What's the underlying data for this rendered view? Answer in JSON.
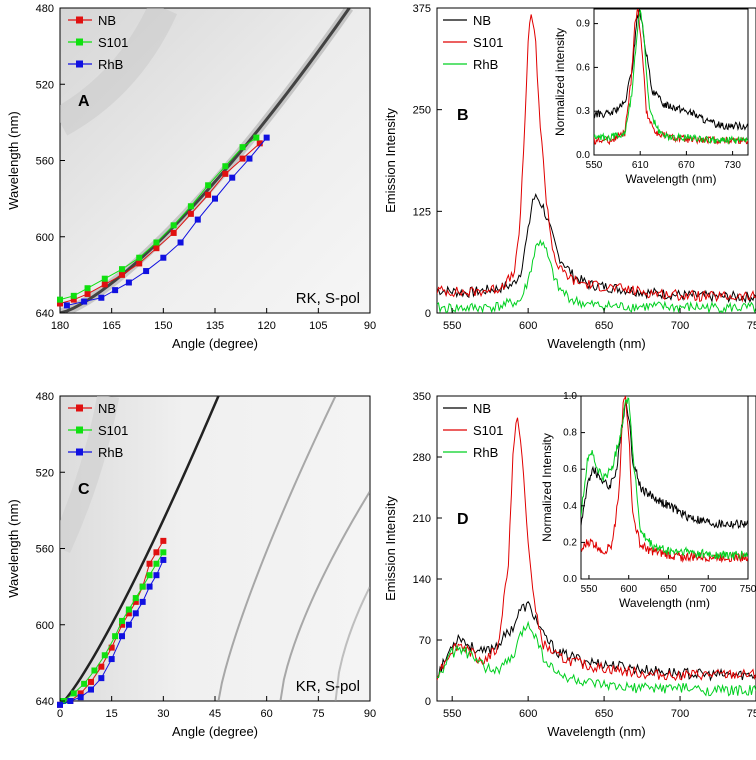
{
  "colors": {
    "NB": "#000000",
    "S101": "#e00000",
    "RhB": "#00d020",
    "NB_marker": "#e01010",
    "S101_marker": "#10e010",
    "RhB_marker": "#1010e0"
  },
  "chart_data": [
    {
      "panel": "A",
      "type": "scatter",
      "annotation": "RK, S-pol",
      "xlabel": "Angle (degree)",
      "ylabel": "Wavelength (nm)",
      "xlim": [
        180,
        90
      ],
      "ylim": [
        640,
        480
      ],
      "xticks": [
        "180",
        "165",
        "150",
        "135",
        "120",
        "105",
        "90"
      ],
      "yticks": [
        "480",
        "520",
        "560",
        "600",
        "640"
      ],
      "background": "dispersion band (grayscale intensity map)",
      "series": [
        {
          "name": "NB",
          "marker": "square",
          "x": [
            180,
            176,
            172,
            167,
            162,
            157,
            152,
            147,
            142,
            137,
            132,
            127,
            122
          ],
          "y": [
            635,
            633,
            630,
            625,
            620,
            614,
            606,
            598,
            588,
            578,
            567,
            559,
            551
          ]
        },
        {
          "name": "S101",
          "marker": "square",
          "x": [
            180,
            176,
            172,
            167,
            162,
            157,
            152,
            147,
            142,
            137,
            132,
            127,
            123
          ],
          "y": [
            633,
            631,
            627,
            622,
            617,
            611,
            603,
            594,
            584,
            573,
            563,
            553,
            548
          ]
        },
        {
          "name": "RhB",
          "marker": "square",
          "x": [
            178,
            173,
            168,
            164,
            160,
            155,
            150,
            145,
            140,
            135,
            130,
            125,
            120
          ],
          "y": [
            636,
            634,
            632,
            628,
            624,
            618,
            611,
            603,
            591,
            580,
            569,
            559,
            548
          ]
        }
      ]
    },
    {
      "panel": "B",
      "type": "line",
      "xlabel": "Wavelength (nm)",
      "ylabel": "Emission Intensity",
      "xlim": [
        540,
        750
      ],
      "ylim": [
        0,
        375
      ],
      "xticks": [
        "550",
        "600",
        "650",
        "700",
        "750"
      ],
      "yticks": [
        "0",
        "125",
        "250",
        "375"
      ],
      "series": [
        {
          "name": "NB",
          "x": [
            540,
            560,
            580,
            590,
            595,
            600,
            603,
            606,
            610,
            615,
            620,
            630,
            640,
            660,
            680,
            700,
            720,
            750
          ],
          "y": [
            28,
            25,
            30,
            35,
            50,
            100,
            140,
            142,
            130,
            100,
            70,
            45,
            35,
            30,
            25,
            22,
            20,
            20
          ]
        },
        {
          "name": "S101",
          "x": [
            540,
            560,
            580,
            590,
            594,
            597,
            600,
            602,
            605,
            608,
            612,
            616,
            620,
            630,
            640,
            660,
            680,
            700,
            720,
            750
          ],
          "y": [
            28,
            25,
            30,
            45,
            90,
            200,
            330,
            370,
            330,
            230,
            140,
            80,
            55,
            40,
            35,
            30,
            25,
            22,
            20,
            20
          ]
        },
        {
          "name": "RhB",
          "x": [
            540,
            560,
            580,
            595,
            600,
            605,
            608,
            612,
            616,
            620,
            630,
            640,
            660,
            680,
            700,
            720,
            750
          ],
          "y": [
            6,
            6,
            8,
            15,
            40,
            80,
            90,
            75,
            50,
            30,
            15,
            10,
            8,
            8,
            7,
            7,
            6
          ]
        }
      ],
      "inset": {
        "xlabel": "Wavelength (nm)",
        "ylabel": "Normalized intensity",
        "xlim": [
          550,
          750
        ],
        "ylim": [
          0,
          1.0
        ],
        "xticks": [
          "550",
          "610",
          "670",
          "730"
        ],
        "yticks": [
          "0.0",
          "0.3",
          "0.6",
          "0.9"
        ],
        "series": [
          {
            "name": "NB",
            "x": [
              550,
              570,
              590,
              600,
              606,
              610,
              615,
              625,
              640,
              660,
              680,
              700,
              720,
              750
            ],
            "y": [
              0.28,
              0.28,
              0.35,
              0.6,
              0.95,
              0.98,
              0.8,
              0.45,
              0.35,
              0.32,
              0.28,
              0.22,
              0.2,
              0.2
            ]
          },
          {
            "name": "S101",
            "x": [
              550,
              570,
              590,
              598,
              603,
              607,
              612,
              618,
              630,
              650,
              680,
              710,
              750
            ],
            "y": [
              0.1,
              0.1,
              0.15,
              0.5,
              0.9,
              1.0,
              0.75,
              0.3,
              0.15,
              0.12,
              0.1,
              0.1,
              0.1
            ]
          },
          {
            "name": "RhB",
            "x": [
              550,
              570,
              590,
              600,
              606,
              610,
              615,
              622,
              635,
              650,
              680,
              710,
              750
            ],
            "y": [
              0.12,
              0.12,
              0.15,
              0.45,
              0.85,
              1.0,
              0.8,
              0.3,
              0.15,
              0.12,
              0.12,
              0.1,
              0.1
            ]
          }
        ]
      }
    },
    {
      "panel": "C",
      "type": "scatter",
      "annotation": "KR, S-pol",
      "xlabel": "Angle (degree)",
      "ylabel": "Wavelength (nm)",
      "xlim": [
        0,
        90
      ],
      "ylim": [
        640,
        480
      ],
      "xticks": [
        "0",
        "15",
        "30",
        "45",
        "60",
        "75",
        "90"
      ],
      "yticks": [
        "480",
        "520",
        "560",
        "600",
        "640"
      ],
      "background": "dispersion bands (grayscale intensity map)",
      "series": [
        {
          "name": "NB",
          "marker": "square",
          "x": [
            0,
            3,
            6,
            9,
            12,
            15,
            18,
            20,
            22,
            24,
            26,
            28,
            30
          ],
          "y": [
            642,
            640,
            636,
            630,
            622,
            612,
            600,
            594,
            588,
            580,
            568,
            562,
            556
          ]
        },
        {
          "name": "S101",
          "marker": "square",
          "x": [
            1,
            4,
            7,
            10,
            13,
            16,
            18,
            20,
            22,
            24,
            26,
            28,
            30
          ],
          "y": [
            640,
            636,
            631,
            624,
            616,
            606,
            598,
            592,
            586,
            580,
            574,
            568,
            562
          ]
        },
        {
          "name": "RhB",
          "marker": "square",
          "x": [
            0,
            3,
            6,
            9,
            12,
            15,
            18,
            20,
            22,
            24,
            26,
            28,
            30
          ],
          "y": [
            642,
            640,
            638,
            634,
            628,
            618,
            606,
            600,
            594,
            588,
            580,
            574,
            566
          ]
        }
      ]
    },
    {
      "panel": "D",
      "type": "line",
      "xlabel": "Wavelength (nm)",
      "ylabel": "Emission Intensity",
      "xlim": [
        540,
        750
      ],
      "ylim": [
        0,
        350
      ],
      "xticks": [
        "550",
        "600",
        "650",
        "700",
        "750"
      ],
      "yticks": [
        "0",
        "70",
        "140",
        "210",
        "280",
        "350"
      ],
      "series": [
        {
          "name": "NB",
          "x": [
            540,
            545,
            550,
            555,
            560,
            570,
            580,
            590,
            595,
            600,
            605,
            610,
            620,
            640,
            660,
            680,
            700,
            720,
            750
          ],
          "y": [
            30,
            45,
            65,
            75,
            65,
            55,
            65,
            85,
            105,
            110,
            95,
            75,
            55,
            45,
            40,
            35,
            32,
            30,
            30
          ]
        },
        {
          "name": "S101",
          "x": [
            540,
            545,
            550,
            555,
            560,
            570,
            580,
            587,
            590,
            593,
            596,
            600,
            605,
            610,
            620,
            640,
            660,
            680,
            700,
            720,
            750
          ],
          "y": [
            30,
            45,
            60,
            65,
            60,
            45,
            60,
            160,
            280,
            330,
            280,
            180,
            100,
            65,
            50,
            40,
            35,
            30,
            30,
            30,
            30
          ]
        },
        {
          "name": "RhB",
          "x": [
            540,
            545,
            550,
            555,
            560,
            570,
            580,
            590,
            595,
            600,
            605,
            610,
            620,
            640,
            660,
            680,
            700,
            720,
            750
          ],
          "y": [
            25,
            40,
            55,
            60,
            55,
            40,
            35,
            50,
            75,
            90,
            75,
            50,
            30,
            20,
            15,
            15,
            15,
            12,
            12
          ]
        }
      ],
      "inset": {
        "xlabel": "Wavelength (nm)",
        "ylabel": "Normalized Intensity",
        "xlim": [
          540,
          750
        ],
        "ylim": [
          0,
          1.0
        ],
        "xticks": [
          "550",
          "600",
          "650",
          "700",
          "750"
        ],
        "yticks": [
          "0.0",
          "0.2",
          "0.4",
          "0.6",
          "0.8",
          "1.0"
        ],
        "series": [
          {
            "name": "NB",
            "x": [
              540,
              550,
              555,
              565,
              575,
              585,
              592,
              596,
              600,
              605,
              615,
              630,
              650,
              670,
              690,
              710,
              730,
              750
            ],
            "y": [
              0.3,
              0.55,
              0.6,
              0.55,
              0.5,
              0.6,
              0.85,
              0.97,
              0.9,
              0.65,
              0.5,
              0.45,
              0.4,
              0.35,
              0.32,
              0.3,
              0.3,
              0.3
            ]
          },
          {
            "name": "S101",
            "x": [
              540,
              548,
              553,
              560,
              570,
              580,
              588,
              593,
              596,
              600,
              605,
              615,
              630,
              650,
              670,
              690,
              710,
              730,
              750
            ],
            "y": [
              0.15,
              0.2,
              0.2,
              0.18,
              0.15,
              0.2,
              0.5,
              0.95,
              1.0,
              0.8,
              0.35,
              0.18,
              0.15,
              0.13,
              0.12,
              0.12,
              0.12,
              0.12,
              0.12
            ]
          },
          {
            "name": "RhB",
            "x": [
              540,
              548,
              553,
              560,
              570,
              580,
              590,
              595,
              600,
              605,
              615,
              630,
              650,
              670,
              690,
              710,
              730,
              750
            ],
            "y": [
              0.35,
              0.65,
              0.7,
              0.6,
              0.55,
              0.62,
              0.8,
              0.95,
              1.0,
              0.7,
              0.25,
              0.18,
              0.15,
              0.15,
              0.14,
              0.13,
              0.13,
              0.13
            ]
          }
        ]
      }
    }
  ]
}
